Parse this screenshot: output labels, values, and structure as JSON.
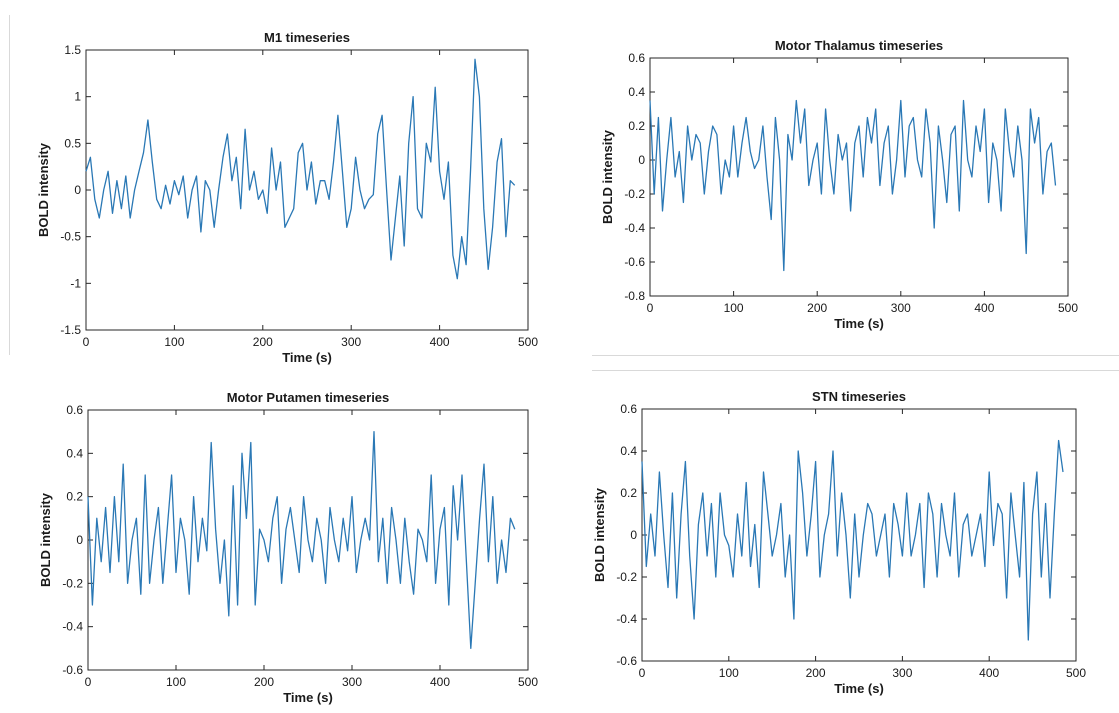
{
  "chart_data": [
    {
      "type": "line",
      "title": "M1 timeseries",
      "xlabel": "Time (s)",
      "ylabel": "BOLD intensity",
      "xlim": [
        0,
        500
      ],
      "ylim": [
        -1.5,
        1.5
      ],
      "xticks": [
        0,
        100,
        200,
        300,
        400,
        500
      ],
      "yticks": [
        -1.5,
        -1,
        -0.5,
        0,
        0.5,
        1,
        1.5
      ],
      "line_color": "#2a78b5",
      "x": [
        0,
        5,
        10,
        15,
        20,
        25,
        30,
        35,
        40,
        45,
        50,
        55,
        60,
        65,
        70,
        75,
        80,
        85,
        90,
        95,
        100,
        105,
        110,
        115,
        120,
        125,
        130,
        135,
        140,
        145,
        150,
        155,
        160,
        165,
        170,
        175,
        180,
        185,
        190,
        195,
        200,
        205,
        210,
        215,
        220,
        225,
        230,
        235,
        240,
        245,
        250,
        255,
        260,
        265,
        270,
        275,
        280,
        285,
        290,
        295,
        300,
        305,
        310,
        315,
        320,
        325,
        330,
        335,
        340,
        345,
        350,
        355,
        360,
        365,
        370,
        375,
        380,
        385,
        390,
        395,
        400,
        405,
        410,
        415,
        420,
        425,
        430,
        435,
        440,
        445,
        450,
        455,
        460,
        465,
        470,
        475,
        480,
        485
      ],
      "y": [
        0.2,
        0.35,
        -0.1,
        -0.3,
        0.0,
        0.2,
        -0.25,
        0.1,
        -0.2,
        0.15,
        -0.3,
        0.0,
        0.2,
        0.4,
        0.75,
        0.3,
        -0.1,
        -0.2,
        0.05,
        -0.15,
        0.1,
        -0.05,
        0.15,
        -0.3,
        0.0,
        0.15,
        -0.45,
        0.1,
        0.0,
        -0.4,
        0.0,
        0.35,
        0.6,
        0.1,
        0.35,
        -0.2,
        0.65,
        0.0,
        0.2,
        -0.1,
        0.0,
        -0.25,
        0.45,
        0.0,
        0.3,
        -0.4,
        -0.3,
        -0.2,
        0.4,
        0.5,
        0.0,
        0.3,
        -0.15,
        0.1,
        0.1,
        -0.1,
        0.3,
        0.8,
        0.2,
        -0.4,
        -0.2,
        0.35,
        0.0,
        -0.2,
        -0.1,
        -0.05,
        0.6,
        0.8,
        0.0,
        -0.75,
        -0.3,
        0.15,
        -0.6,
        0.5,
        1.0,
        -0.2,
        -0.3,
        0.5,
        0.3,
        1.1,
        0.2,
        -0.1,
        0.3,
        -0.7,
        -0.95,
        -0.5,
        -0.8,
        0.2,
        1.4,
        1.0,
        -0.2,
        -0.85,
        -0.4,
        0.3,
        0.55,
        -0.5,
        0.1,
        0.05
      ]
    },
    {
      "type": "line",
      "title": "Motor Thalamus timeseries",
      "xlabel": "Time (s)",
      "ylabel": "BOLD intensity",
      "xlim": [
        0,
        500
      ],
      "ylim": [
        -0.8,
        0.6
      ],
      "xticks": [
        0,
        100,
        200,
        300,
        400,
        500
      ],
      "yticks": [
        -0.8,
        -0.6,
        -0.4,
        -0.2,
        0,
        0.2,
        0.4,
        0.6
      ],
      "line_color": "#2a78b5",
      "x": [
        0,
        5,
        10,
        15,
        20,
        25,
        30,
        35,
        40,
        45,
        50,
        55,
        60,
        65,
        70,
        75,
        80,
        85,
        90,
        95,
        100,
        105,
        110,
        115,
        120,
        125,
        130,
        135,
        140,
        145,
        150,
        155,
        160,
        165,
        170,
        175,
        180,
        185,
        190,
        195,
        200,
        205,
        210,
        215,
        220,
        225,
        230,
        235,
        240,
        245,
        250,
        255,
        260,
        265,
        270,
        275,
        280,
        285,
        290,
        295,
        300,
        305,
        310,
        315,
        320,
        325,
        330,
        335,
        340,
        345,
        350,
        355,
        360,
        365,
        370,
        375,
        380,
        385,
        390,
        395,
        400,
        405,
        410,
        415,
        420,
        425,
        430,
        435,
        440,
        445,
        450,
        455,
        460,
        465,
        470,
        475,
        480,
        485
      ],
      "y": [
        0.35,
        -0.2,
        0.25,
        -0.3,
        0.0,
        0.25,
        -0.1,
        0.05,
        -0.25,
        0.2,
        0.0,
        0.15,
        0.1,
        -0.2,
        0.05,
        0.2,
        0.15,
        -0.2,
        0.0,
        -0.1,
        0.2,
        -0.1,
        0.1,
        0.25,
        0.05,
        -0.05,
        0.0,
        0.2,
        -0.1,
        -0.35,
        0.25,
        0.0,
        -0.65,
        0.15,
        0.0,
        0.35,
        0.1,
        0.3,
        -0.15,
        0.0,
        0.1,
        -0.2,
        0.3,
        0.0,
        -0.2,
        0.15,
        0.0,
        0.1,
        -0.3,
        0.1,
        0.2,
        -0.1,
        0.25,
        0.1,
        0.3,
        -0.15,
        0.1,
        0.2,
        -0.2,
        0.0,
        0.35,
        -0.1,
        0.2,
        0.25,
        0.0,
        -0.1,
        0.3,
        0.1,
        -0.4,
        0.2,
        0.0,
        -0.25,
        0.15,
        0.2,
        -0.3,
        0.35,
        0.0,
        -0.1,
        0.2,
        0.05,
        0.3,
        -0.25,
        0.1,
        0.0,
        -0.3,
        0.3,
        0.05,
        -0.1,
        0.2,
        0.0,
        -0.55,
        0.3,
        0.1,
        0.25,
        -0.2,
        0.05,
        0.1,
        -0.15
      ]
    },
    {
      "type": "line",
      "title": "Motor Putamen timeseries",
      "xlabel": "Time (s)",
      "ylabel": "BOLD intensity",
      "xlim": [
        0,
        500
      ],
      "ylim": [
        -0.6,
        0.6
      ],
      "xticks": [
        0,
        100,
        200,
        300,
        400,
        500
      ],
      "yticks": [
        -0.6,
        -0.4,
        -0.2,
        0,
        0.2,
        0.4,
        0.6
      ],
      "line_color": "#2a78b5",
      "x": [
        0,
        5,
        10,
        15,
        20,
        25,
        30,
        35,
        40,
        45,
        50,
        55,
        60,
        65,
        70,
        75,
        80,
        85,
        90,
        95,
        100,
        105,
        110,
        115,
        120,
        125,
        130,
        135,
        140,
        145,
        150,
        155,
        160,
        165,
        170,
        175,
        180,
        185,
        190,
        195,
        200,
        205,
        210,
        215,
        220,
        225,
        230,
        235,
        240,
        245,
        250,
        255,
        260,
        265,
        270,
        275,
        280,
        285,
        290,
        295,
        300,
        305,
        310,
        315,
        320,
        325,
        330,
        335,
        340,
        345,
        350,
        355,
        360,
        365,
        370,
        375,
        380,
        385,
        390,
        395,
        400,
        405,
        410,
        415,
        420,
        425,
        430,
        435,
        440,
        445,
        450,
        455,
        460,
        465,
        470,
        475,
        480,
        485
      ],
      "y": [
        0.2,
        -0.3,
        0.1,
        -0.1,
        0.15,
        -0.15,
        0.2,
        -0.1,
        0.35,
        -0.2,
        0.0,
        0.1,
        -0.25,
        0.3,
        -0.2,
        0.0,
        0.15,
        -0.2,
        0.05,
        0.3,
        -0.15,
        0.1,
        0.0,
        -0.25,
        0.2,
        -0.1,
        0.1,
        -0.05,
        0.45,
        0.05,
        -0.2,
        0.0,
        -0.35,
        0.25,
        -0.3,
        0.4,
        0.1,
        0.45,
        -0.3,
        0.05,
        0.0,
        -0.1,
        0.1,
        0.2,
        -0.2,
        0.05,
        0.15,
        0.0,
        -0.15,
        0.2,
        0.0,
        -0.1,
        0.1,
        0.0,
        -0.2,
        0.15,
        0.0,
        -0.1,
        0.1,
        -0.05,
        0.2,
        -0.15,
        0.0,
        0.1,
        0.0,
        0.5,
        -0.1,
        0.1,
        -0.2,
        0.15,
        0.0,
        -0.2,
        0.1,
        -0.1,
        -0.25,
        0.05,
        0.0,
        -0.1,
        0.3,
        -0.2,
        0.05,
        0.15,
        -0.3,
        0.25,
        0.0,
        0.3,
        -0.1,
        -0.5,
        -0.2,
        0.1,
        0.35,
        -0.1,
        0.2,
        -0.2,
        0.0,
        -0.15,
        0.1,
        0.05
      ]
    },
    {
      "type": "line",
      "title": "STN timeseries",
      "xlabel": "Time (s)",
      "ylabel": "BOLD intensity",
      "xlim": [
        0,
        500
      ],
      "ylim": [
        -0.6,
        0.6
      ],
      "xticks": [
        0,
        100,
        200,
        300,
        400,
        500
      ],
      "yticks": [
        -0.6,
        -0.4,
        -0.2,
        0,
        0.2,
        0.4,
        0.6
      ],
      "line_color": "#2a78b5",
      "x": [
        0,
        5,
        10,
        15,
        20,
        25,
        30,
        35,
        40,
        45,
        50,
        55,
        60,
        65,
        70,
        75,
        80,
        85,
        90,
        95,
        100,
        105,
        110,
        115,
        120,
        125,
        130,
        135,
        140,
        145,
        150,
        155,
        160,
        165,
        170,
        175,
        180,
        185,
        190,
        195,
        200,
        205,
        210,
        215,
        220,
        225,
        230,
        235,
        240,
        245,
        250,
        255,
        260,
        265,
        270,
        275,
        280,
        285,
        290,
        295,
        300,
        305,
        310,
        315,
        320,
        325,
        330,
        335,
        340,
        345,
        350,
        355,
        360,
        365,
        370,
        375,
        380,
        385,
        390,
        395,
        400,
        405,
        410,
        415,
        420,
        425,
        430,
        435,
        440,
        445,
        450,
        455,
        460,
        465,
        470,
        475,
        480,
        485
      ],
      "y": [
        0.35,
        -0.15,
        0.1,
        -0.1,
        0.3,
        0.0,
        -0.25,
        0.2,
        -0.3,
        0.1,
        0.35,
        -0.1,
        -0.4,
        0.05,
        0.2,
        -0.1,
        0.15,
        -0.2,
        0.2,
        0.0,
        -0.05,
        -0.2,
        0.1,
        -0.1,
        0.25,
        -0.15,
        0.05,
        -0.25,
        0.3,
        0.1,
        -0.1,
        0.0,
        0.15,
        -0.2,
        0.0,
        -0.4,
        0.4,
        0.2,
        -0.1,
        0.1,
        0.35,
        -0.2,
        0.0,
        0.1,
        0.4,
        -0.1,
        0.2,
        0.0,
        -0.3,
        0.1,
        -0.2,
        0.0,
        0.15,
        0.1,
        -0.1,
        0.0,
        0.1,
        -0.2,
        0.15,
        0.05,
        -0.1,
        0.2,
        -0.1,
        0.0,
        0.15,
        -0.25,
        0.2,
        0.1,
        -0.2,
        0.15,
        0.0,
        -0.1,
        0.2,
        -0.2,
        0.05,
        0.1,
        -0.1,
        0.0,
        0.1,
        -0.15,
        0.3,
        -0.05,
        0.15,
        0.1,
        -0.3,
        0.2,
        0.0,
        -0.2,
        0.25,
        -0.5,
        0.1,
        0.3,
        -0.2,
        0.15,
        -0.3,
        0.1,
        0.45,
        0.3
      ]
    }
  ]
}
